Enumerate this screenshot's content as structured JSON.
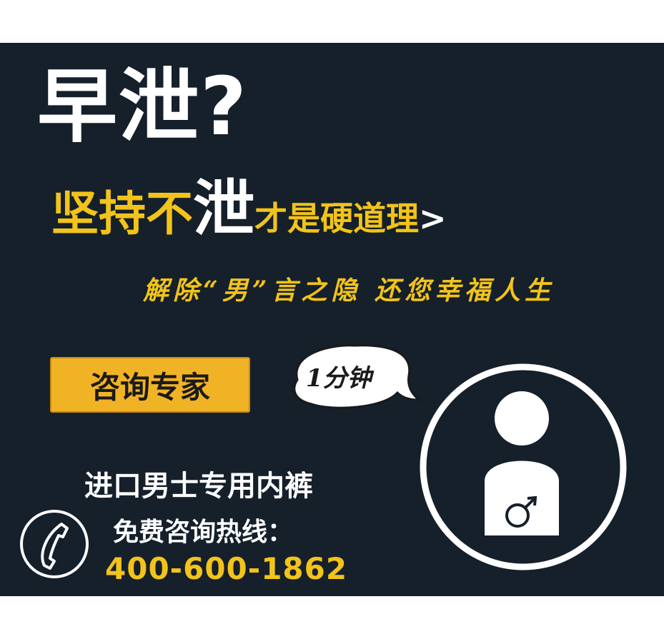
{
  "headline": "早泄?",
  "subline": {
    "part1": "坚持不",
    "part2": "泄",
    "part3": "才是硬道理",
    "arrow": ">"
  },
  "tagline": "解除“男”言之隐 还您幸福人生",
  "cta_button": "咨询专家",
  "bubble_text": "1分钟",
  "line1": "进口男士专用内裤",
  "line2": "免费咨询热线：",
  "phone_number": "400-600-1862",
  "icons": [
    "phone-icon",
    "male-person-icon",
    "male-symbol-icon",
    "speech-bubble-icon"
  ],
  "colors": {
    "background": "#15202b",
    "accent": "#f2c31a",
    "button": "#f1b326",
    "text": "#ffffff"
  }
}
